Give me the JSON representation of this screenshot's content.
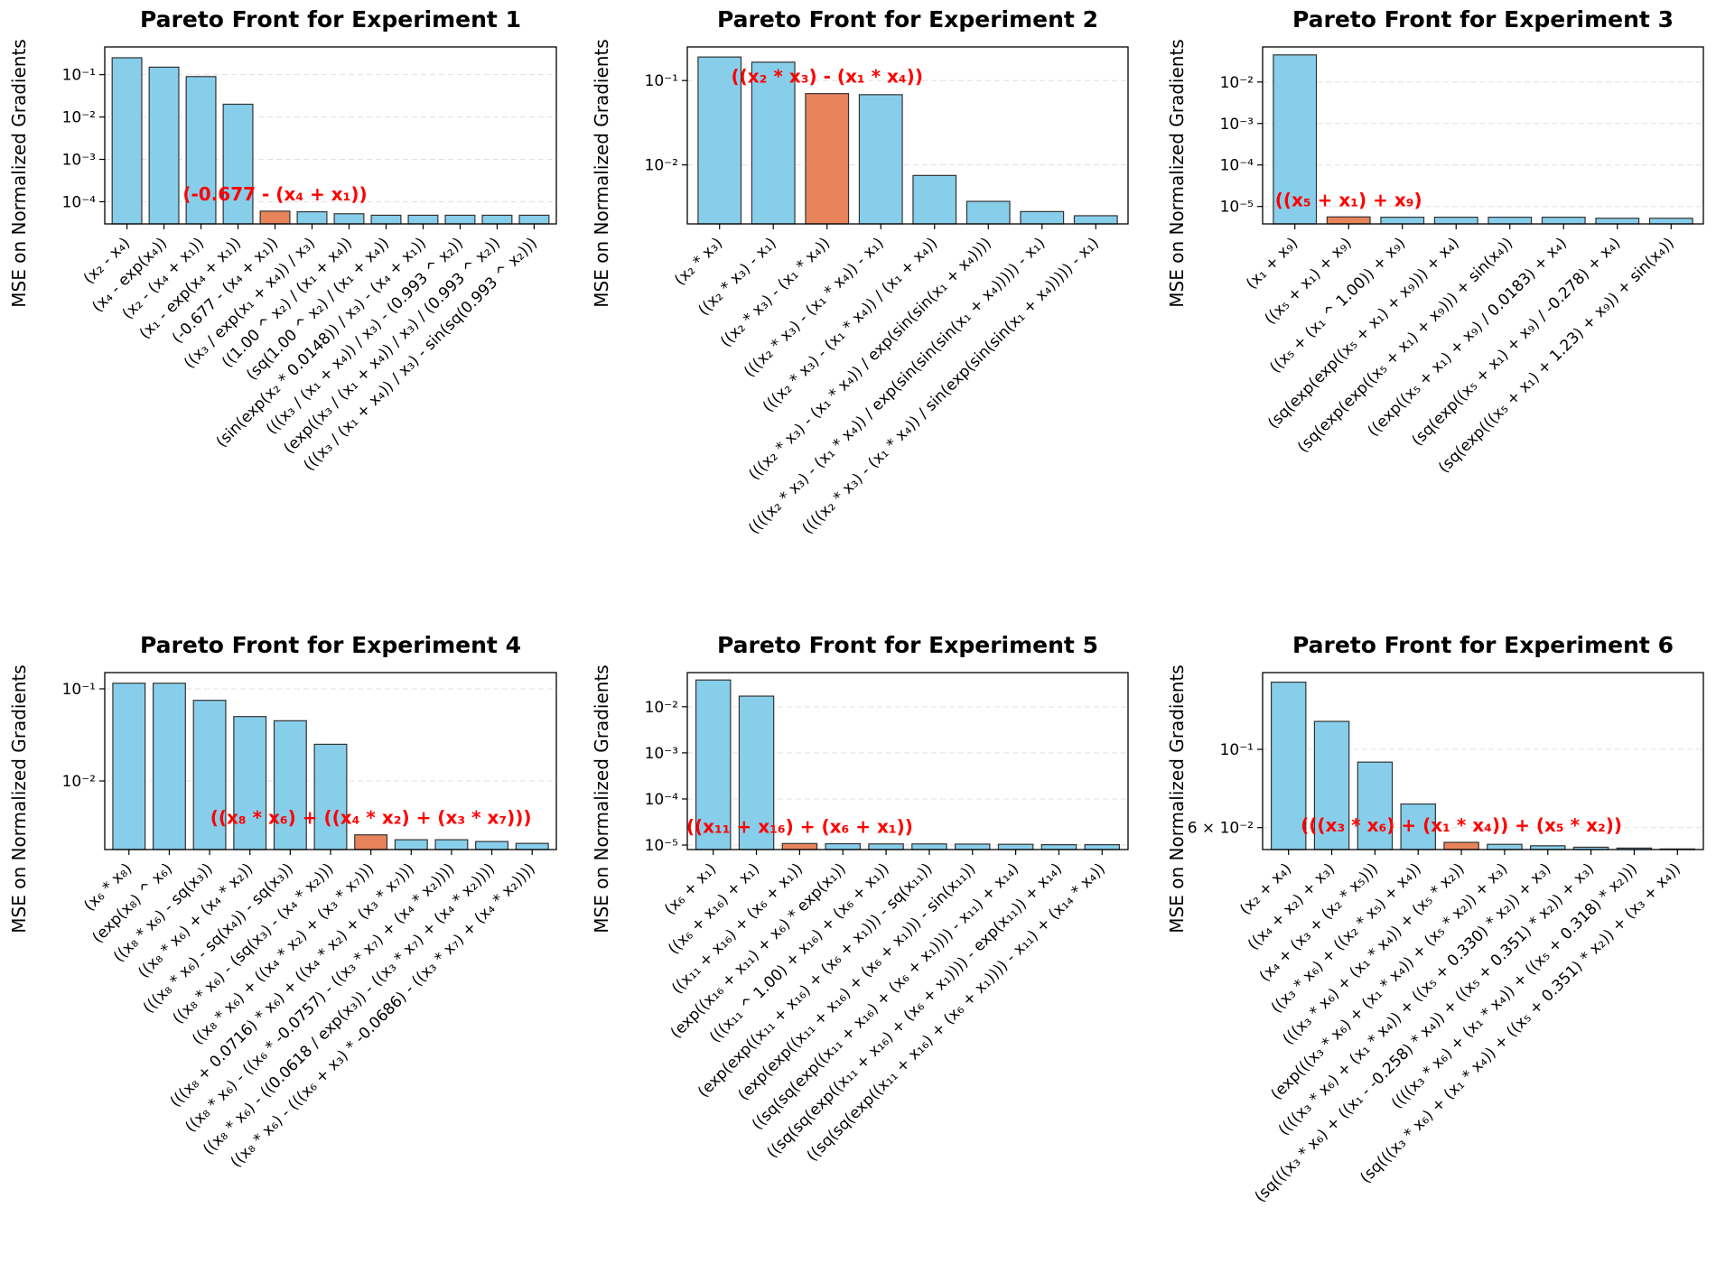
{
  "colors": {
    "bar": "#87ceeb",
    "best_bar": "#e8845b",
    "edge": "#333333",
    "best_text": "#ff0000"
  },
  "chart_data": [
    {
      "type": "bar",
      "yscale": "log",
      "title": "Pareto Front for Experiment 1",
      "ylabel": "MSE on Normalized Gradients",
      "ylim": [
        3e-05,
        0.45
      ],
      "yticks": [
        {
          "v": 0.1,
          "label": "10⁻¹"
        },
        {
          "v": 0.01,
          "label": "10⁻²"
        },
        {
          "v": 0.001,
          "label": "10⁻³"
        },
        {
          "v": 0.0001,
          "label": "10⁻⁴"
        }
      ],
      "categories": [
        "(x₂ - x₄)",
        "(x₄ - exp(x₄))",
        "(x₂ - (x₄ + x₁))",
        "(x₁ - exp(x₄ + x₁))",
        "(-0.677 - (x₄ + x₁))",
        "((x₃ / exp(x₁ + x₄)) / x₃)",
        "((1.00 ^ x₂) / (x₁ + x₄))",
        "(sq(1.00 ^ x₂) / (x₁ + x₄))",
        "(sin(exp(x₂ * 0.0148)) / x₃) - (x₄ + x₁))",
        "(((x₃ / (x₁ + x₄)) / x₃) - (0.993 ^ x₂))",
        "(exp((x₃ / (x₁ + x₄)) / x₃) / (0.993 ^ x₂))",
        "(((x₃ / (x₁ + x₄)) / x₃) - sin(sq(0.993 ^ x₂)))"
      ],
      "values": [
        0.25,
        0.15,
        0.09,
        0.02,
        6e-05,
        5.8e-05,
        5.2e-05,
        4.8e-05,
        4.8e-05,
        4.8e-05,
        4.8e-05,
        4.8e-05
      ],
      "best_index": 4,
      "best_label": "(-0.677 - (x₄ + x₁))"
    },
    {
      "type": "bar",
      "yscale": "log",
      "title": "Pareto Front for Experiment 2",
      "ylabel": "MSE on Normalized Gradients",
      "ylim": [
        0.002,
        0.25
      ],
      "yticks": [
        {
          "v": 0.1,
          "label": "10⁻¹"
        },
        {
          "v": 0.01,
          "label": "10⁻²"
        }
      ],
      "categories": [
        "(x₂ * x₃)",
        "((x₂ * x₃) - x₁)",
        "((x₂ * x₃) - (x₁ * x₄))",
        "(((x₂ * x₃) - (x₁ * x₄)) - x₁)",
        "(((x₂ * x₃) - (x₁ * x₄)) / (x₁ + x₄))",
        "(((x₂ * x₃) - (x₁ * x₄)) / exp(sin(sin(x₁ + x₄))))",
        "((((x₂ * x₃) - (x₁ * x₄)) / exp(sin(sin(sin(x₁ + x₄))))) - x₁)",
        "((((x₂ * x₃) - (x₁ * x₄)) / sin(exp(sin(sin(x₁ + x₄))))) - x₁)"
      ],
      "values": [
        0.19,
        0.165,
        0.07,
        0.068,
        0.0075,
        0.0037,
        0.0028,
        0.0025
      ],
      "best_index": 2,
      "best_label": "((x₂ * x₃) - (x₁ * x₄))"
    },
    {
      "type": "bar",
      "yscale": "log",
      "title": "Pareto Front for Experiment 3",
      "ylabel": "MSE on Normalized Gradients",
      "ylim": [
        3.8e-06,
        0.07
      ],
      "yticks": [
        {
          "v": 0.01,
          "label": "10⁻²"
        },
        {
          "v": 0.001,
          "label": "10⁻³"
        },
        {
          "v": 0.0001,
          "label": "10⁻⁴"
        },
        {
          "v": 1e-05,
          "label": "10⁻⁵"
        }
      ],
      "categories": [
        "(x₁ + x₉)",
        "((x₅ + x₁) + x₉)",
        "((x₅ + (x₁ ^ 1.00)) + x₉)",
        "(sq(exp(exp((x₅ + x₁) + x₉))) + x₄)",
        "(sq(exp(exp((x₅ + x₁) + x₉))) + sin(x₄))",
        "((exp((x₅ + x₁) + x₉) / 0.0183) + x₄)",
        "(sq(exp((x₅ + x₁) + x₉) / -0.278) + x₄)",
        "(sq(exp(((x₅ + x₁) + 1.23) + x₉)) + sin(x₄))"
      ],
      "values": [
        0.045,
        5.6e-06,
        5.5e-06,
        5.5e-06,
        5.5e-06,
        5.5e-06,
        5.2e-06,
        5.2e-06
      ],
      "best_index": 1,
      "best_label": "((x₅ + x₁) + x₉)"
    },
    {
      "type": "bar",
      "yscale": "log",
      "title": "Pareto Front for Experiment 4",
      "ylabel": "MSE on Normalized Gradients",
      "ylim": [
        0.0018,
        0.15
      ],
      "yticks": [
        {
          "v": 0.1,
          "label": "10⁻¹"
        },
        {
          "v": 0.01,
          "label": "10⁻²"
        }
      ],
      "categories": [
        "(x₆ * x₈)",
        "(exp(x₈) ^ x₆)",
        "((x₈ * x₆) - sq(x₃))",
        "((x₈ * x₆) + (x₄ * x₂))",
        "(((x₈ * x₆) - sq(x₄)) - sq(x₃))",
        "((x₈ * x₆) - (sq(x₃) - (x₄ * x₂)))",
        "((x₈ * x₆) + ((x₄ * x₂) + (x₃ * x₇)))",
        "(((x₈ + 0.0716) * x₆) + ((x₄ * x₂) + (x₃ * x₇)))",
        "((x₈ * x₆) - ((x₆ * -0.0757) - ((x₃ * x₇) + (x₄ * x₂))))",
        "((x₈ * x₆) - ((0.0618 / exp(x₃)) - ((x₃ * x₇) + (x₄ * x₂))))",
        "((x₈ * x₆) - (((x₆ + x₃) * -0.0686) - ((x₃ * x₇) + (x₄ * x₂))))"
      ],
      "values": [
        0.115,
        0.115,
        0.075,
        0.05,
        0.045,
        0.025,
        0.0026,
        0.0023,
        0.0023,
        0.0022,
        0.0021
      ],
      "best_index": 6,
      "best_label": "((x₈ * x₆) + ((x₄ * x₂) + (x₃ * x₇)))"
    },
    {
      "type": "bar",
      "yscale": "log",
      "title": "Pareto Front for Experiment 5",
      "ylabel": "MSE on Normalized Gradients",
      "ylim": [
        8e-06,
        0.055
      ],
      "yticks": [
        {
          "v": 0.01,
          "label": "10⁻²"
        },
        {
          "v": 0.001,
          "label": "10⁻³"
        },
        {
          "v": 0.0001,
          "label": "10⁻⁴"
        },
        {
          "v": 1e-05,
          "label": "10⁻⁵"
        }
      ],
      "categories": [
        "(x₆ + x₁)",
        "((x₆ + x₁₆) + x₁)",
        "((x₁₁ + x₁₆) + (x₆ + x₁))",
        "(exp((x₁₆ + x₁₁) + x₆) * exp(x₁))",
        "(((x₁₁ ^ 1.00) + x₁₆) + (x₆ + x₁))",
        "(exp(exp((x₁₁ + x₁₆) + (x₆ + x₁))) - sq(x₁₁))",
        "(exp(exp((x₁₁ + x₁₆) + (x₆ + x₁))) - sin(x₁₁))",
        "((sq(sq(exp((x₁₁ + x₁₆) + (x₆ + x₁)))) - x₁₁) + x₁₄)",
        "((sq(sq(exp((x₁₁ + x₁₆) + (x₆ + x₁)))) - exp(x₁₁)) + x₁₄)",
        "((sq(sq(exp((x₁₁ + x₁₆) + (x₆ + x₁)))) - x₁₁) + (x₁₄ * x₄))"
      ],
      "values": [
        0.038,
        0.017,
        1.08e-05,
        1.07e-05,
        1.06e-05,
        1.06e-05,
        1.05e-05,
        1.04e-05,
        1.02e-05,
        1.02e-05
      ],
      "best_index": 2,
      "best_label": "((x₁₁ + x₁₆) + (x₆ + x₁))"
    },
    {
      "type": "bar",
      "yscale": "log",
      "title": "Pareto Front for Experiment 6",
      "ylabel": "MSE on Normalized Gradients",
      "ylim": [
        0.052,
        0.165
      ],
      "yticks": [
        {
          "v": 0.1,
          "label": "10⁻¹"
        },
        {
          "v": 0.06,
          "label": "6 × 10⁻²"
        }
      ],
      "categories": [
        "(x₂ + x₄)",
        "((x₄ + x₂) + x₃)",
        "(x₄ + (x₃ + (x₂ * x₅)))",
        "((x₃ * x₆) + ((x₂ * x₅) + x₄))",
        "(((x₃ * x₆) + (x₁ * x₄)) + (x₅ * x₂))",
        "(exp(((x₃ * x₆) + (x₁ * x₄)) + (x₅ * x₂)) + x₃)",
        "((((x₃ * x₆) + (x₁ * x₄)) + ((x₅ + 0.330) * x₂)) + x₃)",
        "(sq(((x₃ * x₆) + ((x₁ - -0.258) * x₄)) + ((x₅ + 0.351) * x₂)) + x₃)",
        "((((x₃ * x₆) + (x₁ * x₄)) + ((x₅ + 0.318) * x₂)))",
        "(sq(((x₃ * x₆) + (x₁ * x₄)) + ((x₅ + 0.351) * x₂)) + (x₃ + x₄))"
      ],
      "values": [
        0.155,
        0.12,
        0.092,
        0.07,
        0.0545,
        0.0538,
        0.0533,
        0.0528,
        0.0525,
        0.0522
      ],
      "best_index": 4,
      "best_label": "(((x₃ * x₆) + (x₁ * x₄)) + (x₅ * x₂))"
    }
  ]
}
